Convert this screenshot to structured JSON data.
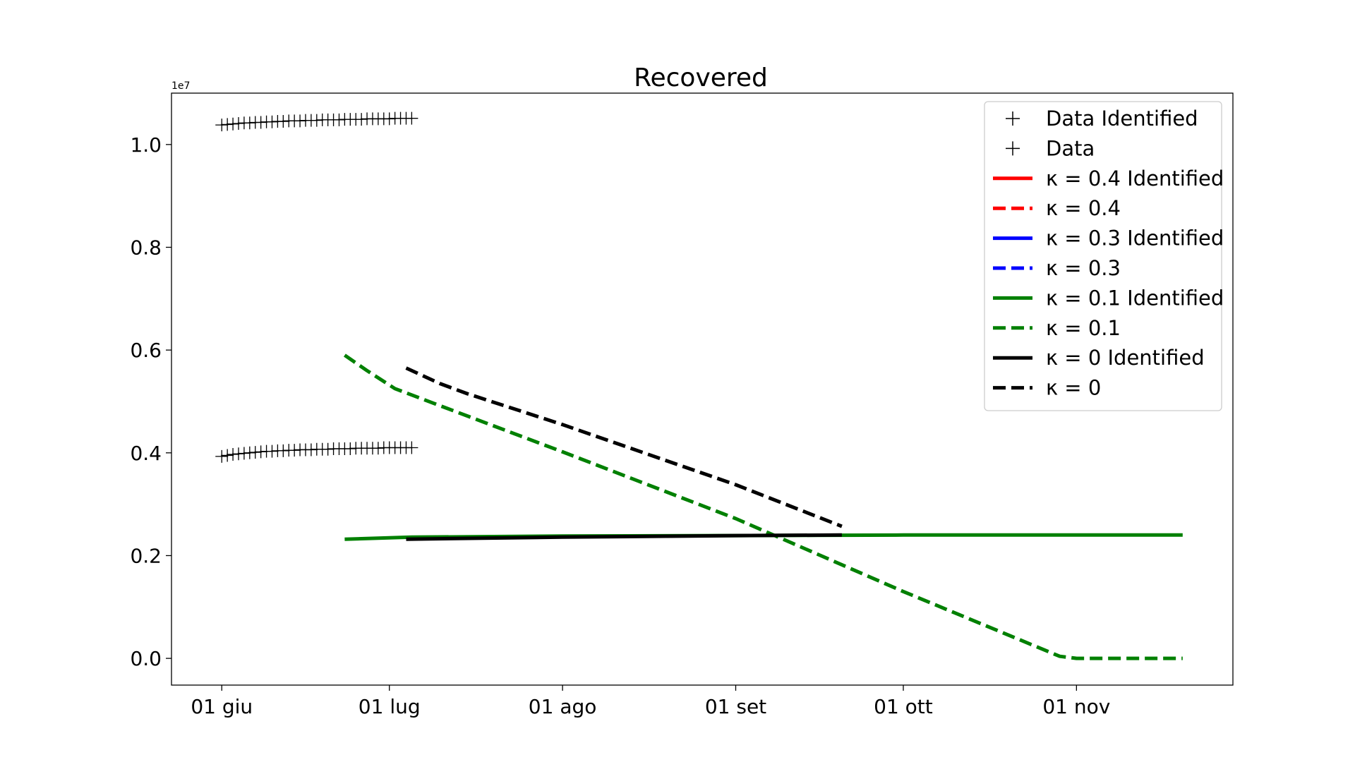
{
  "chart_data": {
    "type": "line",
    "title": "Recovered",
    "xlabel": "",
    "ylabel": "",
    "y_offset_label": "1e7",
    "x_axis": {
      "type": "date",
      "range": [
        "2021-05-23",
        "2021-11-29"
      ],
      "ticks": [
        {
          "date": "2021-06-01",
          "label": "01 giu"
        },
        {
          "date": "2021-07-01",
          "label": "01 lug"
        },
        {
          "date": "2021-08-01",
          "label": "01 ago"
        },
        {
          "date": "2021-09-01",
          "label": "01 set"
        },
        {
          "date": "2021-10-01",
          "label": "01 ott"
        },
        {
          "date": "2021-11-01",
          "label": "01 nov"
        }
      ]
    },
    "y_axis": {
      "range": [
        -0.052,
        1.1
      ],
      "ticks": [
        {
          "value": 0.0,
          "label": "0.0"
        },
        {
          "value": 0.2,
          "label": "0.2"
        },
        {
          "value": 0.4,
          "label": "0.4"
        },
        {
          "value": 0.6,
          "label": "0.6"
        },
        {
          "value": 0.8,
          "label": "0.8"
        },
        {
          "value": 1.0,
          "label": "1.0"
        }
      ]
    },
    "grid": false,
    "legend_position": "top-right",
    "series": [
      {
        "name": "Data Identified",
        "kind": "markers",
        "color": "#000000",
        "points": [
          {
            "x": "2021-06-01",
            "y": 0.393
          },
          {
            "x": "2021-06-02",
            "y": 0.395
          },
          {
            "x": "2021-06-03",
            "y": 0.397
          },
          {
            "x": "2021-06-04",
            "y": 0.398
          },
          {
            "x": "2021-06-05",
            "y": 0.399
          },
          {
            "x": "2021-06-06",
            "y": 0.4
          },
          {
            "x": "2021-06-07",
            "y": 0.401
          },
          {
            "x": "2021-06-08",
            "y": 0.402
          },
          {
            "x": "2021-06-09",
            "y": 0.403
          },
          {
            "x": "2021-06-10",
            "y": 0.403
          },
          {
            "x": "2021-06-11",
            "y": 0.404
          },
          {
            "x": "2021-06-12",
            "y": 0.404
          },
          {
            "x": "2021-06-13",
            "y": 0.405
          },
          {
            "x": "2021-06-14",
            "y": 0.405
          },
          {
            "x": "2021-06-15",
            "y": 0.406
          },
          {
            "x": "2021-06-16",
            "y": 0.406
          },
          {
            "x": "2021-06-17",
            "y": 0.406
          },
          {
            "x": "2021-06-18",
            "y": 0.407
          },
          {
            "x": "2021-06-19",
            "y": 0.407
          },
          {
            "x": "2021-06-20",
            "y": 0.407
          },
          {
            "x": "2021-06-21",
            "y": 0.408
          },
          {
            "x": "2021-06-22",
            "y": 0.408
          },
          {
            "x": "2021-06-23",
            "y": 0.408
          },
          {
            "x": "2021-06-24",
            "y": 0.408
          },
          {
            "x": "2021-06-25",
            "y": 0.409
          },
          {
            "x": "2021-06-26",
            "y": 0.409
          },
          {
            "x": "2021-06-27",
            "y": 0.409
          },
          {
            "x": "2021-06-28",
            "y": 0.409
          },
          {
            "x": "2021-06-29",
            "y": 0.409
          },
          {
            "x": "2021-06-30",
            "y": 0.41
          },
          {
            "x": "2021-07-01",
            "y": 0.41
          },
          {
            "x": "2021-07-02",
            "y": 0.41
          },
          {
            "x": "2021-07-03",
            "y": 0.41
          },
          {
            "x": "2021-07-04",
            "y": 0.41
          },
          {
            "x": "2021-07-05",
            "y": 0.41
          }
        ]
      },
      {
        "name": "Data",
        "kind": "markers",
        "color": "#000000",
        "points": [
          {
            "x": "2021-06-01",
            "y": 1.038
          },
          {
            "x": "2021-06-02",
            "y": 1.039
          },
          {
            "x": "2021-06-03",
            "y": 1.04
          },
          {
            "x": "2021-06-04",
            "y": 1.041
          },
          {
            "x": "2021-06-05",
            "y": 1.042
          },
          {
            "x": "2021-06-06",
            "y": 1.042
          },
          {
            "x": "2021-06-07",
            "y": 1.043
          },
          {
            "x": "2021-06-08",
            "y": 1.043
          },
          {
            "x": "2021-06-09",
            "y": 1.044
          },
          {
            "x": "2021-06-10",
            "y": 1.044
          },
          {
            "x": "2021-06-11",
            "y": 1.045
          },
          {
            "x": "2021-06-12",
            "y": 1.045
          },
          {
            "x": "2021-06-13",
            "y": 1.046
          },
          {
            "x": "2021-06-14",
            "y": 1.046
          },
          {
            "x": "2021-06-15",
            "y": 1.046
          },
          {
            "x": "2021-06-16",
            "y": 1.047
          },
          {
            "x": "2021-06-17",
            "y": 1.047
          },
          {
            "x": "2021-06-18",
            "y": 1.047
          },
          {
            "x": "2021-06-19",
            "y": 1.048
          },
          {
            "x": "2021-06-20",
            "y": 1.048
          },
          {
            "x": "2021-06-21",
            "y": 1.048
          },
          {
            "x": "2021-06-22",
            "y": 1.048
          },
          {
            "x": "2021-06-23",
            "y": 1.049
          },
          {
            "x": "2021-06-24",
            "y": 1.049
          },
          {
            "x": "2021-06-25",
            "y": 1.049
          },
          {
            "x": "2021-06-26",
            "y": 1.049
          },
          {
            "x": "2021-06-27",
            "y": 1.05
          },
          {
            "x": "2021-06-28",
            "y": 1.05
          },
          {
            "x": "2021-06-29",
            "y": 1.05
          },
          {
            "x": "2021-06-30",
            "y": 1.05
          },
          {
            "x": "2021-07-01",
            "y": 1.05
          },
          {
            "x": "2021-07-02",
            "y": 1.051
          },
          {
            "x": "2021-07-03",
            "y": 1.051
          },
          {
            "x": "2021-07-04",
            "y": 1.051
          },
          {
            "x": "2021-07-05",
            "y": 1.051
          }
        ]
      },
      {
        "name": "κ = 0.4 Identified",
        "kind": "line",
        "style": "solid",
        "color": "#ff0000",
        "points": []
      },
      {
        "name": "κ = 0.4",
        "kind": "line",
        "style": "dashed",
        "color": "#ff0000",
        "points": []
      },
      {
        "name": "κ = 0.3 Identified",
        "kind": "line",
        "style": "solid",
        "color": "#0000ff",
        "points": []
      },
      {
        "name": "κ = 0.3",
        "kind": "line",
        "style": "dashed",
        "color": "#0000ff",
        "points": []
      },
      {
        "name": "κ = 0.1 Identified",
        "kind": "line",
        "style": "solid",
        "color": "#008000",
        "points": [
          {
            "x": "2021-06-23",
            "y": 0.232
          },
          {
            "x": "2021-07-05",
            "y": 0.236
          },
          {
            "x": "2021-08-01",
            "y": 0.238
          },
          {
            "x": "2021-09-01",
            "y": 0.239
          },
          {
            "x": "2021-10-01",
            "y": 0.24
          },
          {
            "x": "2021-11-01",
            "y": 0.24
          },
          {
            "x": "2021-11-20",
            "y": 0.24
          }
        ]
      },
      {
        "name": "κ = 0.1",
        "kind": "line",
        "style": "dashed",
        "color": "#008000",
        "points": [
          {
            "x": "2021-06-23",
            "y": 0.59
          },
          {
            "x": "2021-06-27",
            "y": 0.56
          },
          {
            "x": "2021-07-02",
            "y": 0.525
          },
          {
            "x": "2021-07-10",
            "y": 0.492
          },
          {
            "x": "2021-08-01",
            "y": 0.402
          },
          {
            "x": "2021-09-01",
            "y": 0.272
          },
          {
            "x": "2021-10-01",
            "y": 0.13
          },
          {
            "x": "2021-10-29",
            "y": 0.004
          },
          {
            "x": "2021-11-01",
            "y": 0.0
          },
          {
            "x": "2021-11-20",
            "y": 0.0
          }
        ]
      },
      {
        "name": "κ = 0 Identified",
        "kind": "line",
        "style": "solid",
        "color": "#000000",
        "points": [
          {
            "x": "2021-07-04",
            "y": 0.232
          },
          {
            "x": "2021-08-01",
            "y": 0.236
          },
          {
            "x": "2021-09-01",
            "y": 0.239
          },
          {
            "x": "2021-09-20",
            "y": 0.24
          }
        ]
      },
      {
        "name": "κ = 0",
        "kind": "line",
        "style": "dashed",
        "color": "#000000",
        "points": [
          {
            "x": "2021-07-04",
            "y": 0.565
          },
          {
            "x": "2021-07-10",
            "y": 0.535
          },
          {
            "x": "2021-07-15",
            "y": 0.515
          },
          {
            "x": "2021-08-01",
            "y": 0.455
          },
          {
            "x": "2021-09-01",
            "y": 0.338
          },
          {
            "x": "2021-09-20",
            "y": 0.257
          }
        ]
      }
    ]
  }
}
